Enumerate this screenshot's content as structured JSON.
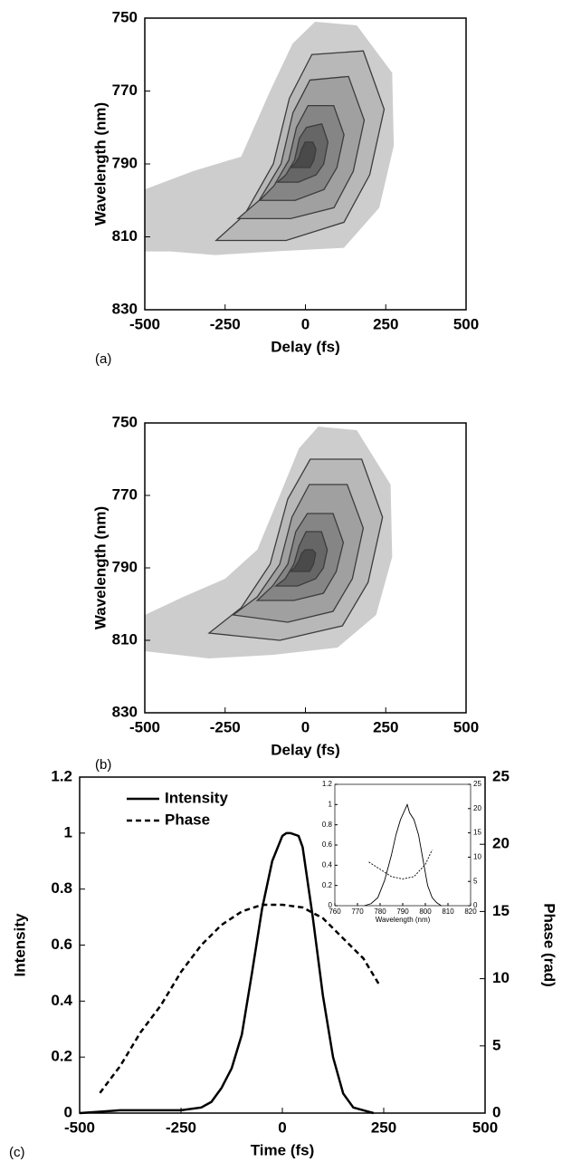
{
  "chart_data": [
    {
      "type": "contour",
      "panel_label": "(a)",
      "xlabel": "Delay (fs)",
      "ylabel": "Wavelength (nm)",
      "xlim": [
        -500,
        500
      ],
      "ylim": [
        830,
        750
      ],
      "xticks": [
        -500,
        -250,
        0,
        250,
        500
      ],
      "yticks": [
        750,
        770,
        790,
        810,
        830
      ],
      "region_color": "#cdcdcd",
      "contour_color": "#3c3c3c",
      "fill_colors": [
        "#b8b8b8",
        "#a0a0a0",
        "#858585",
        "#666666",
        "#4a4a4a"
      ],
      "region": {
        "x": [
          -500,
          -350,
          -200,
          -110,
          -40,
          30,
          160,
          270,
          275,
          230,
          120,
          -100,
          -280,
          -420,
          -500
        ],
        "y": [
          797,
          792,
          788,
          770,
          757,
          751,
          752,
          765,
          785,
          802,
          813,
          814,
          815,
          814,
          814
        ]
      },
      "contours": [
        {
          "x": [
            -278,
            -190,
            -100,
            -50,
            20,
            180,
            245,
            200,
            120,
            -60
          ],
          "y": [
            811,
            804,
            790,
            772,
            760,
            759,
            775,
            793,
            806,
            811
          ]
        },
        {
          "x": [
            -210,
            -144,
            -76,
            -39,
            14,
            134,
            183,
            149,
            89,
            -46
          ],
          "y": [
            805,
            800,
            790,
            776,
            767,
            766,
            778,
            792,
            802,
            805
          ]
        },
        {
          "x": [
            -142,
            -98,
            -52,
            -28,
            8,
            88,
            120,
            98,
            58,
            -32
          ],
          "y": [
            800,
            796,
            789,
            780,
            774,
            774,
            782,
            791,
            797,
            800
          ]
        },
        {
          "x": [
            -87,
            -61,
            -34,
            -19,
            3,
            51,
            70,
            57,
            33,
            -22
          ],
          "y": [
            795,
            793,
            789,
            783,
            780,
            779,
            784,
            790,
            793,
            795
          ]
        },
        {
          "x": [
            -46,
            -33,
            -19,
            -12,
            -1,
            23,
            33,
            26,
            14,
            -13
          ],
          "y": [
            791,
            790,
            788,
            786,
            784,
            784,
            786,
            789,
            791,
            791
          ]
        }
      ]
    },
    {
      "type": "contour",
      "panel_label": "(b)",
      "xlabel": "Delay (fs)",
      "ylabel": "Wavelength (nm)",
      "xlim": [
        -500,
        500
      ],
      "ylim": [
        830,
        750
      ],
      "xticks": [
        -500,
        -250,
        0,
        250,
        500
      ],
      "yticks": [
        750,
        770,
        790,
        810,
        830
      ],
      "region_color": "#cdcdcd",
      "contour_color": "#3c3c3c",
      "fill_colors": [
        "#b8b8b8",
        "#a0a0a0",
        "#858585",
        "#666666",
        "#4a4a4a"
      ],
      "region": {
        "x": [
          -500,
          -380,
          -250,
          -150,
          -80,
          -20,
          40,
          160,
          265,
          270,
          220,
          100,
          -100,
          -300,
          -500
        ],
        "y": [
          803,
          798,
          793,
          785,
          770,
          757,
          751,
          752,
          767,
          787,
          803,
          812,
          814,
          815,
          813
        ]
      },
      "contours": [
        {
          "x": [
            -300,
            -200,
            -110,
            -55,
            15,
            175,
            240,
            195,
            115,
            -80
          ],
          "y": [
            808,
            801,
            789,
            771,
            760,
            760,
            776,
            794,
            806,
            810
          ]
        },
        {
          "x": [
            -225,
            -150,
            -80,
            -42,
            12,
            130,
            180,
            146,
            86,
            -55
          ],
          "y": [
            803,
            798,
            789,
            776,
            767,
            767,
            779,
            793,
            802,
            805
          ]
        },
        {
          "x": [
            -150,
            -102,
            -55,
            -30,
            6,
            86,
            118,
            96,
            56,
            -36
          ],
          "y": [
            799,
            795,
            789,
            780,
            775,
            775,
            783,
            791,
            797,
            799
          ]
        },
        {
          "x": [
            -92,
            -63,
            -36,
            -20,
            2,
            50,
            68,
            56,
            32,
            -24
          ],
          "y": [
            795,
            793,
            789,
            784,
            780,
            780,
            785,
            790,
            793,
            795
          ]
        },
        {
          "x": [
            -48,
            -34,
            -20,
            -12,
            -1,
            22,
            32,
            25,
            13,
            -14
          ],
          "y": [
            791,
            790,
            788,
            786,
            785,
            785,
            786,
            789,
            791,
            791
          ]
        }
      ]
    },
    {
      "type": "line",
      "panel_label": "(c)",
      "xlabel": "Time (fs)",
      "ylabel": "Intensity",
      "y2label": "Phase (rad)",
      "xlim": [
        -500,
        500
      ],
      "ylim": [
        0,
        1.2
      ],
      "y2lim": [
        0,
        25
      ],
      "xticks": [
        -500,
        -250,
        0,
        250,
        500
      ],
      "yticks": [
        0,
        0.2,
        0.4,
        0.6,
        0.8,
        1,
        1.2
      ],
      "y2ticks": [
        0,
        5,
        10,
        15,
        20,
        25
      ],
      "legend": "upper left",
      "series": [
        {
          "name": "Intensity",
          "color": "#000000",
          "dash": "solid",
          "x": [
            -500,
            -400,
            -300,
            -250,
            -200,
            -175,
            -150,
            -125,
            -100,
            -75,
            -50,
            -25,
            0,
            10,
            20,
            40,
            50,
            75,
            100,
            125,
            150,
            175,
            200,
            225
          ],
          "values": [
            0,
            0.01,
            0.01,
            0.01,
            0.02,
            0.04,
            0.09,
            0.16,
            0.28,
            0.5,
            0.73,
            0.9,
            0.99,
            1,
            1,
            0.99,
            0.95,
            0.7,
            0.42,
            0.2,
            0.07,
            0.02,
            0.01,
            0
          ]
        },
        {
          "name": "Phase",
          "color": "#000000",
          "dash": "dashed",
          "axis": "y2",
          "x": [
            -450,
            -400,
            -350,
            -300,
            -250,
            -200,
            -150,
            -100,
            -50,
            0,
            50,
            100,
            150,
            200,
            240
          ],
          "values": [
            1.5,
            3.5,
            6,
            8,
            10.5,
            12.5,
            14,
            15,
            15.5,
            15.5,
            15.3,
            14.5,
            13,
            11.5,
            9.5
          ]
        }
      ]
    },
    {
      "type": "line",
      "xlabel": "Wavelength (nm)",
      "xlim": [
        760,
        820
      ],
      "ylim": [
        0,
        1.2
      ],
      "y2lim": [
        0,
        25
      ],
      "xticks": [
        760,
        770,
        780,
        790,
        800,
        810,
        820
      ],
      "yticks": [
        0,
        0.2,
        0.4,
        0.6,
        0.8,
        1,
        1.2
      ],
      "y2ticks": [
        0,
        5,
        10,
        15,
        20,
        25
      ],
      "series": [
        {
          "color": "#000000",
          "dash": "solid",
          "x": [
            773,
            776,
            779,
            782,
            785,
            787,
            789,
            791,
            792,
            793,
            795,
            797,
            799,
            801,
            803,
            805,
            807
          ],
          "values": [
            0,
            0.02,
            0.08,
            0.25,
            0.5,
            0.7,
            0.85,
            0.95,
            1,
            0.92,
            0.85,
            0.7,
            0.45,
            0.2,
            0.08,
            0.03,
            0
          ]
        },
        {
          "color": "#000000",
          "dash": "dashed",
          "axis": "y2",
          "x": [
            775,
            780,
            785,
            790,
            795,
            800,
            803
          ],
          "values": [
            9,
            7.5,
            6,
            5.5,
            6,
            8.5,
            11.5
          ]
        }
      ]
    }
  ]
}
